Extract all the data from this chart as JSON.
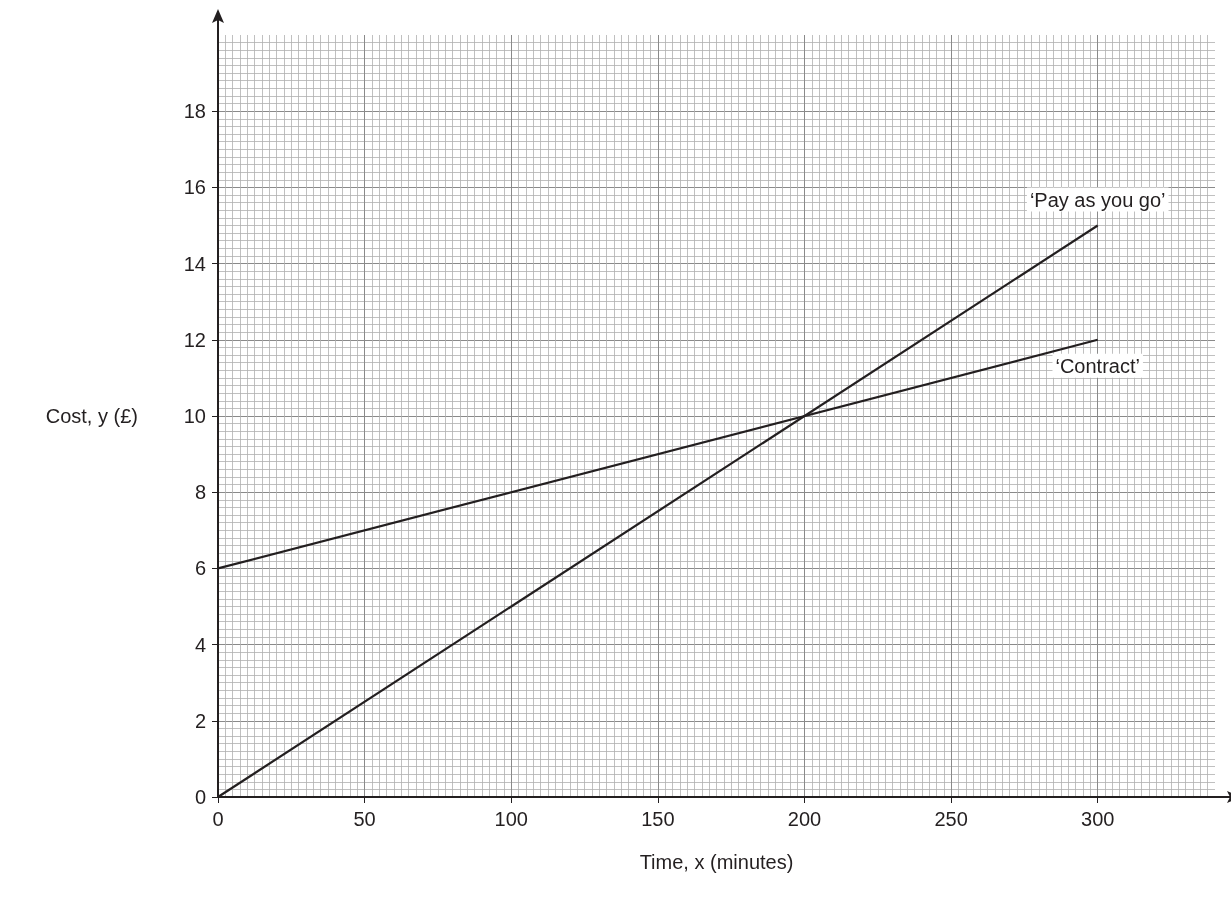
{
  "chart_data": {
    "type": "line",
    "xlabel": "Time, x (minutes)",
    "ylabel": "Cost, y (£)",
    "x": [
      0,
      300
    ],
    "series": [
      {
        "name": "‘Pay as you go’",
        "color": "#231f20",
        "values": [
          0,
          15
        ]
      },
      {
        "name": "‘Contract’",
        "color": "#231f20",
        "values": [
          6,
          12
        ]
      }
    ],
    "xlim": [
      0,
      340
    ],
    "ylim": [
      0,
      20
    ],
    "xticks": [
      0,
      50,
      100,
      150,
      200,
      250,
      300
    ],
    "yticks": [
      0,
      2,
      4,
      6,
      8,
      10,
      12,
      14,
      16,
      18
    ],
    "grid": true,
    "legend": false,
    "marker": "none",
    "line_style": "solid"
  }
}
